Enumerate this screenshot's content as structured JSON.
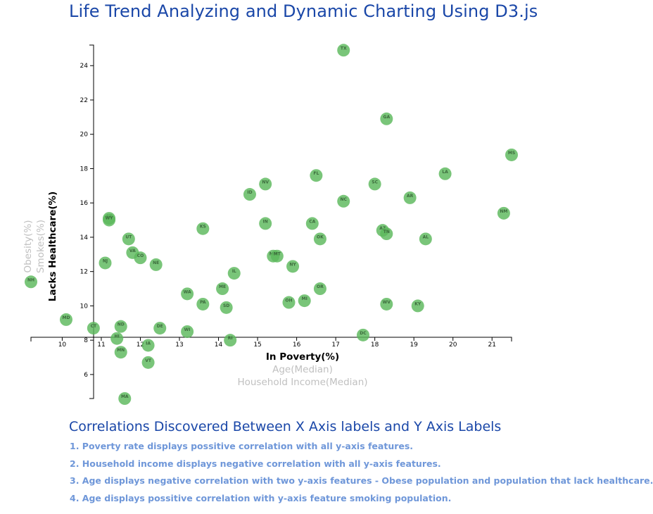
{
  "page": {
    "title": "Life Trend Analyzing and Dynamic Charting Using D3.js",
    "section_title": "Correlations Discovered Between X Axis labels and Y Axis Labels",
    "findings": [
      "1. Poverty rate displays possitive correlation with all y-axis features.",
      "2. Household income displays negative correlation with all y-axis features.",
      "3. Age displays negative correlation with two y-axis features - Obese population and population that lack healthcare.",
      "4. Age displays possitive correlation with y-axis feature smoking population."
    ]
  },
  "colors": {
    "title": "#1a47a8",
    "dot": "#5cb85c",
    "active_axis_label": "#000000",
    "inactive_axis_label": "#c0c0c0",
    "findings_text": "#6f97d9"
  },
  "chart_data": {
    "type": "scatter",
    "title": "",
    "x_axis_options": [
      {
        "label": "In Poverty(%)",
        "active": true
      },
      {
        "label": "Age(Median)",
        "active": false
      },
      {
        "label": "Household Income(Median)",
        "active": false
      }
    ],
    "y_axis_options": [
      {
        "label": "Lacks Healthcare(%)",
        "active": true
      },
      {
        "label": "Smokes(%)",
        "active": false
      },
      {
        "label": "Obesity(%)",
        "active": false
      }
    ],
    "xlim": [
      9.2,
      21.5
    ],
    "ylim": [
      4.6,
      25.2
    ],
    "x_ticks": [
      10,
      11,
      12,
      13,
      14,
      15,
      16,
      17,
      18,
      19,
      20,
      21
    ],
    "y_ticks": [
      6,
      8,
      10,
      12,
      14,
      16,
      18,
      20,
      22,
      24
    ],
    "grid": false,
    "legend": "none",
    "points": [
      {
        "label": "TX",
        "x": 17.2,
        "y": 24.9
      },
      {
        "label": "GA",
        "x": 18.3,
        "y": 20.9
      },
      {
        "label": "MS",
        "x": 21.5,
        "y": 18.8
      },
      {
        "label": "LA",
        "x": 19.8,
        "y": 17.7
      },
      {
        "label": "FL",
        "x": 16.5,
        "y": 17.6
      },
      {
        "label": "SC",
        "x": 18.0,
        "y": 17.1
      },
      {
        "label": "NV",
        "x": 15.2,
        "y": 17.1
      },
      {
        "label": "ID",
        "x": 14.8,
        "y": 16.5
      },
      {
        "label": "AR",
        "x": 18.9,
        "y": 16.3
      },
      {
        "label": "NC",
        "x": 17.2,
        "y": 16.1
      },
      {
        "label": "NM",
        "x": 21.3,
        "y": 15.4
      },
      {
        "label": "AK",
        "x": 11.2,
        "y": 15.1
      },
      {
        "label": "WY",
        "x": 11.2,
        "y": 15.0
      },
      {
        "label": "IN",
        "x": 15.2,
        "y": 14.8
      },
      {
        "label": "CA",
        "x": 16.4,
        "y": 14.8
      },
      {
        "label": "KS",
        "x": 13.6,
        "y": 14.5
      },
      {
        "label": "AZ",
        "x": 18.2,
        "y": 14.4
      },
      {
        "label": "TN",
        "x": 18.3,
        "y": 14.2
      },
      {
        "label": "OK",
        "x": 16.6,
        "y": 13.9
      },
      {
        "label": "AL",
        "x": 19.3,
        "y": 13.9
      },
      {
        "label": "UT",
        "x": 11.7,
        "y": 13.9
      },
      {
        "label": "VA",
        "x": 11.8,
        "y": 13.1
      },
      {
        "label": "MO",
        "x": 15.4,
        "y": 12.9
      },
      {
        "label": "MT",
        "x": 15.5,
        "y": 12.9
      },
      {
        "label": "CO",
        "x": 12.0,
        "y": 12.8
      },
      {
        "label": "NJ",
        "x": 11.1,
        "y": 12.5
      },
      {
        "label": "NE",
        "x": 12.4,
        "y": 12.4
      },
      {
        "label": "NY",
        "x": 15.9,
        "y": 12.3
      },
      {
        "label": "IL",
        "x": 14.4,
        "y": 11.9
      },
      {
        "label": "NH",
        "x": 9.2,
        "y": 11.4
      },
      {
        "label": "ME",
        "x": 14.1,
        "y": 11.0
      },
      {
        "label": "OR",
        "x": 16.6,
        "y": 11.0
      },
      {
        "label": "WA",
        "x": 13.2,
        "y": 10.7
      },
      {
        "label": "MI",
        "x": 16.2,
        "y": 10.3
      },
      {
        "label": "OH",
        "x": 15.8,
        "y": 10.2
      },
      {
        "label": "PA",
        "x": 13.6,
        "y": 10.1
      },
      {
        "label": "WV",
        "x": 18.3,
        "y": 10.1
      },
      {
        "label": "KY",
        "x": 19.1,
        "y": 10.0
      },
      {
        "label": "SD",
        "x": 14.2,
        "y": 9.9
      },
      {
        "label": "MD",
        "x": 10.1,
        "y": 9.2
      },
      {
        "label": "ND",
        "x": 11.5,
        "y": 8.8
      },
      {
        "label": "DE",
        "x": 12.5,
        "y": 8.7
      },
      {
        "label": "CT",
        "x": 10.8,
        "y": 8.7
      },
      {
        "label": "WI",
        "x": 13.2,
        "y": 8.5
      },
      {
        "label": "DC",
        "x": 17.7,
        "y": 8.3
      },
      {
        "label": "HI",
        "x": 11.4,
        "y": 8.1
      },
      {
        "label": "RI",
        "x": 14.3,
        "y": 8.0
      },
      {
        "label": "IA",
        "x": 12.2,
        "y": 7.7
      },
      {
        "label": "MN",
        "x": 11.5,
        "y": 7.3
      },
      {
        "label": "VT",
        "x": 12.2,
        "y": 6.7
      },
      {
        "label": "MA",
        "x": 11.6,
        "y": 4.6
      }
    ]
  }
}
